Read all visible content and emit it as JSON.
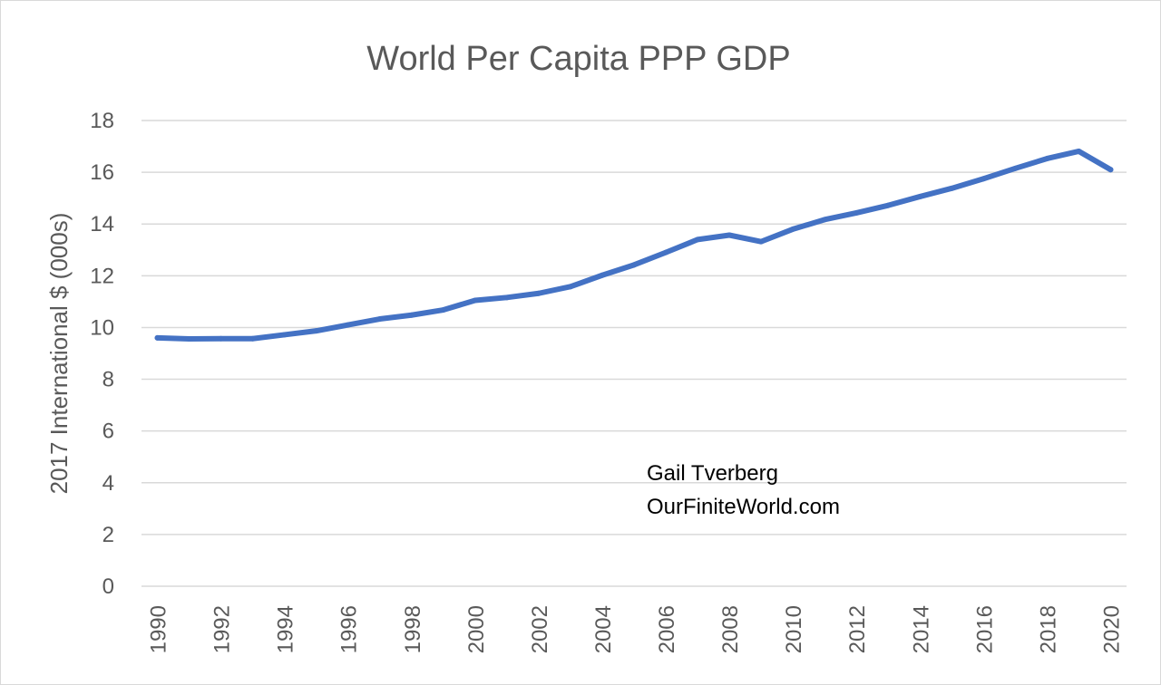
{
  "chart_data": {
    "type": "line",
    "title": "World Per Capita PPP GDP",
    "xlabel": "",
    "ylabel": "2017 International $ (000s)",
    "x": [
      1990,
      1991,
      1992,
      1993,
      1994,
      1995,
      1996,
      1997,
      1998,
      1999,
      2000,
      2001,
      2002,
      2003,
      2004,
      2005,
      2006,
      2007,
      2008,
      2009,
      2010,
      2011,
      2012,
      2013,
      2014,
      2015,
      2016,
      2017,
      2018,
      2019,
      2020
    ],
    "x_tick_labels": [
      "1990",
      "1992",
      "1994",
      "1996",
      "1998",
      "2000",
      "2002",
      "2004",
      "2006",
      "2008",
      "2010",
      "2012",
      "2014",
      "2016",
      "2018",
      "2020"
    ],
    "series": [
      {
        "values": [
          9.6,
          9.56,
          9.57,
          9.57,
          9.72,
          9.87,
          10.1,
          10.33,
          10.48,
          10.68,
          11.05,
          11.16,
          11.32,
          11.58,
          12.02,
          12.42,
          12.9,
          13.4,
          13.57,
          13.32,
          13.8,
          14.17,
          14.43,
          14.72,
          15.06,
          15.38,
          15.75,
          16.15,
          16.53,
          16.81,
          16.1
        ],
        "color": "#4472c4"
      }
    ],
    "ylim": [
      0,
      18
    ],
    "y_ticks": [
      0,
      2,
      4,
      6,
      8,
      10,
      12,
      14,
      16,
      18
    ],
    "grid": true,
    "legend": "none",
    "annotations": [
      "Gail Tverberg",
      "OurFiniteWorld.com"
    ]
  }
}
